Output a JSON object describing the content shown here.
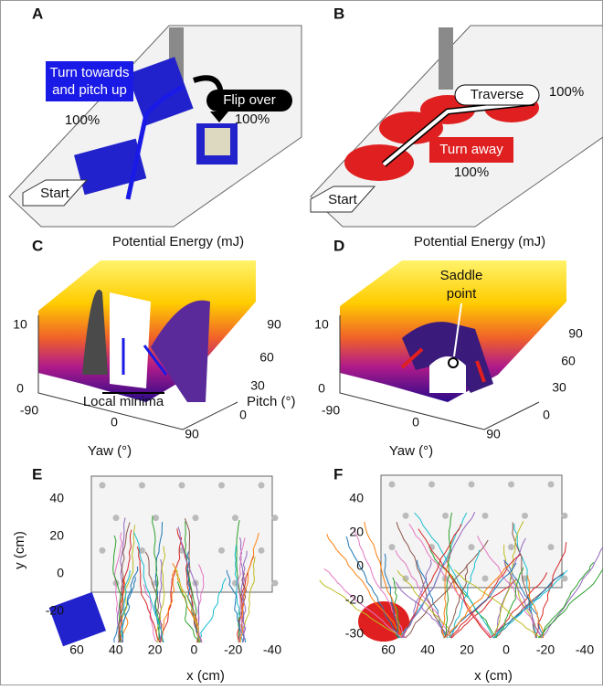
{
  "panel_a": {
    "label": "A",
    "turn_label": [
      "Turn towards",
      "and pitch up"
    ],
    "turn_pct": "100%",
    "flip_label": "Flip over",
    "flip_pct": "100%",
    "start": "Start"
  },
  "panel_b": {
    "label": "B",
    "traverse_label": "Traverse",
    "traverse_pct": "100%",
    "turn_away_label": "Turn away",
    "turn_away_pct": "100%",
    "start": "Start"
  },
  "panel_c": {
    "label": "C",
    "title": "Potential Energy (mJ)",
    "z_ticks": [
      10,
      0
    ],
    "yaw_ticks": [
      -90,
      0,
      90
    ],
    "pitch_ticks": [
      90,
      60,
      30,
      0
    ],
    "yaw_label": "Yaw (°)",
    "pitch_label": "Pitch (°)",
    "annotation": "Local minima"
  },
  "panel_d": {
    "label": "D",
    "title": "Potential Energy (mJ)",
    "z_ticks": [
      10,
      0
    ],
    "yaw_ticks": [
      -90,
      0,
      90
    ],
    "pitch_ticks": [
      90,
      60,
      30,
      0
    ],
    "yaw_label": "Yaw (°)",
    "pitch_label": "Pitch (°)",
    "annotation": [
      "Saddle",
      "point"
    ]
  },
  "panel_e": {
    "label": "E",
    "x_label": "x (cm)",
    "y_label": "y (cm)",
    "xticks": [
      60,
      40,
      20,
      0,
      -20,
      -40
    ],
    "yticks": [
      40,
      20,
      0,
      -20
    ]
  },
  "panel_f": {
    "label": "F",
    "x_label": "x (cm)",
    "yticks": [
      40,
      20,
      0,
      -20,
      -30
    ],
    "xticks": [
      60,
      40,
      20,
      0,
      -20,
      -40
    ]
  }
}
